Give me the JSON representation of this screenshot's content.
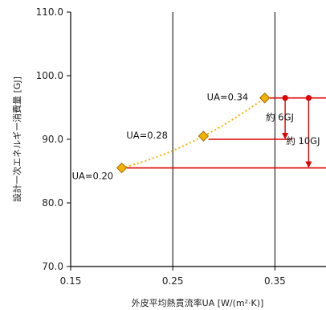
{
  "chart_data": {
    "type": "scatter",
    "xlabel": "外皮平均熱貫流率UA [W/(m²·K)]",
    "ylabel": "設計一次エネルギー消費量 [GJ]",
    "xlim": [
      0.15,
      0.4
    ],
    "ylim": [
      70,
      110
    ],
    "x_ticks": [
      "0.15",
      "0.25",
      "0.35"
    ],
    "x_tick_values": [
      0.15,
      0.25,
      0.35
    ],
    "y_ticks": [
      "70.0",
      "80.0",
      "90.0",
      "100.0",
      "110.0"
    ],
    "y_tick_values": [
      70,
      80,
      90,
      100,
      110
    ],
    "grid": "vertical lines at 0.25 and 0.35",
    "series": [
      {
        "points": [
          {
            "x": 0.2,
            "y": 85.5,
            "label": "UA=0.20"
          },
          {
            "x": 0.28,
            "y": 90.5,
            "label": "UA=0.28"
          },
          {
            "x": 0.34,
            "y": 96.5,
            "label": "UA=0.34"
          }
        ],
        "color": "#f2b200",
        "fit_line": "dotted"
      }
    ],
    "reference_levels": [
      85.5,
      90.0,
      96.5
    ],
    "annotations": [
      {
        "text": "約 6GJ",
        "from": 96.5,
        "to": 90.0,
        "x": 0.36
      },
      {
        "text": "約 10GJ",
        "from": 96.5,
        "to": 85.5,
        "x": 0.383
      }
    ],
    "colors": {
      "marker": "#f2b200",
      "marker_edge": "#a06a00",
      "ref_line": "#e00000",
      "grid": "#000000"
    }
  }
}
